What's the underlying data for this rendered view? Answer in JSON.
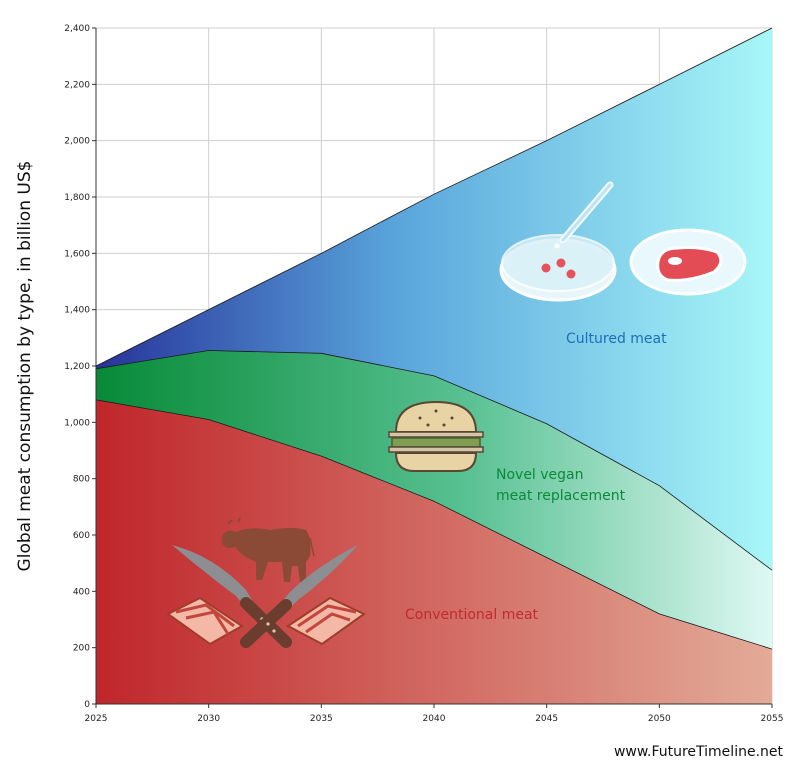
{
  "chart_data": {
    "type": "area",
    "stacked": true,
    "x": [
      2025,
      2030,
      2035,
      2040,
      2045,
      2050,
      2055
    ],
    "series": [
      {
        "name": "Conventional meat",
        "values": [
          1080,
          1010,
          880,
          720,
          520,
          320,
          195
        ],
        "color": "#c1272d"
      },
      {
        "name": "Novel vegan meat replacement",
        "values": [
          110,
          245,
          365,
          445,
          475,
          455,
          280
        ],
        "color": "#0a8f3c"
      },
      {
        "name": "Cultured meat",
        "values": [
          10,
          145,
          355,
          645,
          1005,
          1425,
          1925
        ],
        "color": "#2e3f9e"
      }
    ],
    "xticks": [
      "2025",
      "2030",
      "2035",
      "2040",
      "2045",
      "2050",
      "2055"
    ],
    "yticks": [
      "0",
      "200",
      "400",
      "600",
      "800",
      "1,000",
      "1,200",
      "1,400",
      "1,600",
      "1,800",
      "2,000",
      "2,200",
      "2,400"
    ],
    "xlim": [
      2025,
      2055
    ],
    "ylim": [
      0,
      2400
    ],
    "ylabel": "Global meat consumption by type, in billion US$",
    "xlabel": "",
    "grid": true,
    "labels": {
      "cultured": "Cultured meat",
      "vegan_line1": "Novel vegan",
      "vegan_line2": "meat replacement",
      "conventional": "Conventional meat"
    }
  },
  "credit": "www.FutureTimeline.net",
  "icons": [
    "petri-dish-icon",
    "dropper-icon",
    "steak-dish-icon",
    "burger-icon",
    "cow-icon",
    "knife-icon",
    "bacon-icon"
  ]
}
